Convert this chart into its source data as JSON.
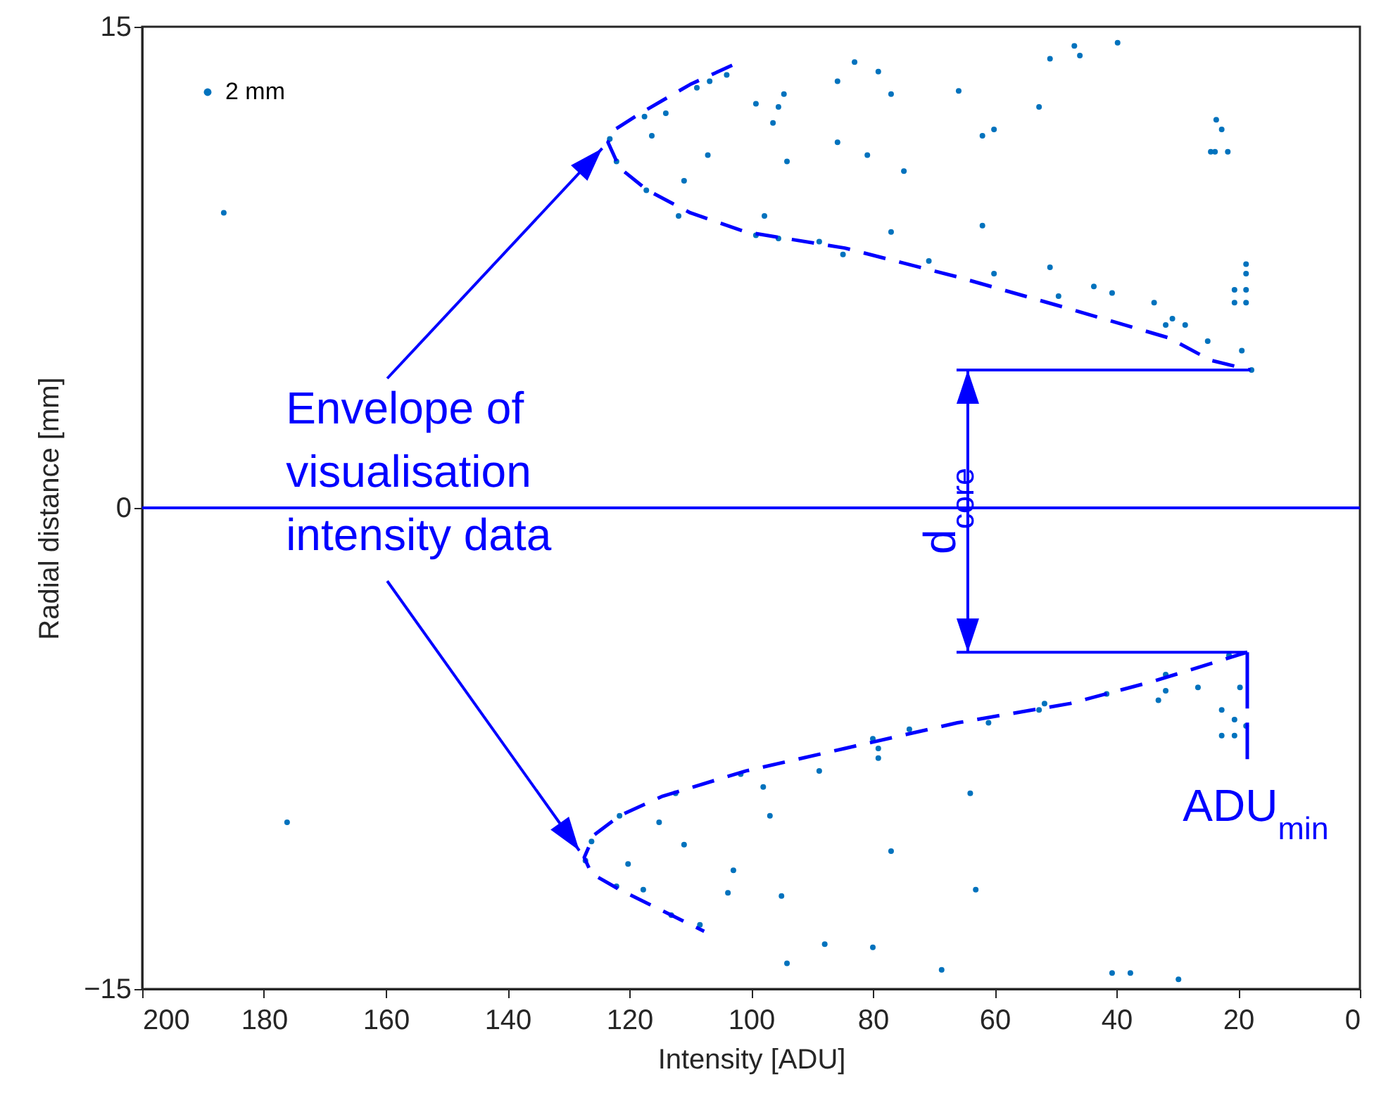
{
  "chart_data": {
    "type": "scatter",
    "xlabel": "Intensity [ADU]",
    "ylabel": "Radial distance [mm]",
    "xlim": [
      200,
      0
    ],
    "xticks": [
      200,
      180,
      160,
      140,
      120,
      100,
      80,
      60,
      40,
      20,
      0
    ],
    "ylim": [
      -15,
      15
    ],
    "yticks": [
      -15,
      0,
      15
    ],
    "grid": false,
    "legend": "top left",
    "marker": "circle",
    "series": [
      {
        "name": "2 mm",
        "color": "#0072bd",
        "x": [
          186.6,
          117.5,
          114,
          123.2,
          116.3,
          122.1,
          107.1,
          117.2,
          111.0,
          111.9,
          108.9,
          106.8,
          104.0,
          99.2,
          99.2,
          94.6,
          95.5,
          96.4,
          94.1,
          85.8,
          83.0,
          79.1,
          77.0,
          85.8,
          80.9,
          74.9,
          65.9,
          62.0,
          60.1,
          52.7,
          50.9,
          46.9,
          46.0,
          39.8,
          23.6,
          22.7,
          24.5,
          23.8,
          21.7,
          97.8,
          95.5,
          88.8,
          84.9,
          77.0,
          70.8,
          62.0,
          60.1,
          50.9,
          49.5,
          43.7,
          40.7,
          33.8,
          31.9,
          30.8,
          28.7,
          25.0,
          18.7,
          18.7,
          20.6,
          18.7,
          20.6,
          18.7,
          19.4,
          17.8,
          176.2,
          126.2,
          127.2,
          121.6,
          115.1,
          111.0,
          120.2,
          122.1,
          117.7,
          102.9,
          103.8,
          113.1,
          108.4,
          112.4,
          101.7,
          98.0,
          96.9,
          88.8,
          80.0,
          79.1,
          79.1,
          74.0,
          61.0,
          52.7,
          51.8,
          41.6,
          33.1,
          31.9,
          31.9,
          26.6,
          22.7,
          20.6,
          22.7,
          20.6,
          19.7,
          18.7,
          21.5,
          64.0,
          77.0,
          95.0,
          63.1,
          87.9,
          80.0,
          94.1,
          68.7,
          40.7,
          37.7,
          29.8
        ],
        "values": [
          9.2,
          12.2,
          12.3,
          11.5,
          11.6,
          10.8,
          11.0,
          9.9,
          10.2,
          9.1,
          13.1,
          13.3,
          13.5,
          12.6,
          8.5,
          12.9,
          12.5,
          12.0,
          10.8,
          13.3,
          13.9,
          13.6,
          12.9,
          11.4,
          11.0,
          10.5,
          13.0,
          11.6,
          11.8,
          12.5,
          14.0,
          14.4,
          14.1,
          14.5,
          12.1,
          11.8,
          11.1,
          11.1,
          11.1,
          9.1,
          8.4,
          8.3,
          7.9,
          8.6,
          7.7,
          8.8,
          7.3,
          7.5,
          6.6,
          6.9,
          6.7,
          6.4,
          5.7,
          5.9,
          5.7,
          5.2,
          7.6,
          7.3,
          6.8,
          6.8,
          6.4,
          6.4,
          4.9,
          4.3,
          -9.8,
          -10.4,
          -11.0,
          -9.6,
          -9.8,
          -10.5,
          -11.1,
          -11.8,
          -11.9,
          -11.3,
          -12.0,
          -12.7,
          -13.0,
          -8.9,
          -8.3,
          -8.7,
          -9.6,
          -8.2,
          -7.2,
          -7.5,
          -7.8,
          -6.9,
          -6.7,
          -6.3,
          -6.1,
          -5.8,
          -6.0,
          -5.7,
          -5.2,
          -5.6,
          -6.3,
          -6.6,
          -7.1,
          -7.1,
          -5.6,
          -6.8,
          -4.6,
          -8.9,
          -10.7,
          -12.1,
          -11.9,
          -13.6,
          -13.7,
          -14.2,
          -14.4,
          -14.5,
          -14.5,
          -14.7
        ]
      },
      {
        "type": "line",
        "color": "#0000ff",
        "line_style": "dashed",
        "marker": "none",
        "x": [
          103.1,
          110,
          118.2,
          122.3,
          123.5,
          121.6,
          117,
          110,
          100.8,
          84.6,
          66.1,
          47.6,
          31.4,
          24.5,
          18
        ],
        "values": [
          13.8,
          13.2,
          12.3,
          11.8,
          11.4,
          10.6,
          9.9,
          9.2,
          8.6,
          8.1,
          7.2,
          6.2,
          5.3,
          4.6,
          4.3
        ]
      },
      {
        "type": "line",
        "color": "#0000ff",
        "line_style": "dashed",
        "marker": "none",
        "x": [
          18.5,
          33.8,
          47.6,
          66.1,
          84.6,
          100.8,
          114.7,
          121.6,
          125.8,
          127.4,
          126.2,
          121.6,
          107.7
        ],
        "values": [
          -4.5,
          -5.4,
          -6.1,
          -6.7,
          -7.5,
          -8.2,
          -9.0,
          -9.6,
          -10.2,
          -10.9,
          -11.4,
          -11.9,
          -13.2
        ]
      }
    ],
    "ref_lines": [
      {
        "axis": "y",
        "value": 0,
        "color": "#0000ff"
      }
    ],
    "annotations": [
      {
        "text": "Envelope of\nvisualisation\nintensity data",
        "x": 123.5,
        "y": 11.4
      },
      "d$_{core}$",
      {
        "text": "ADU$_{min}$",
        "x": 18.5,
        "y": -4.5
      }
    ]
  }
}
